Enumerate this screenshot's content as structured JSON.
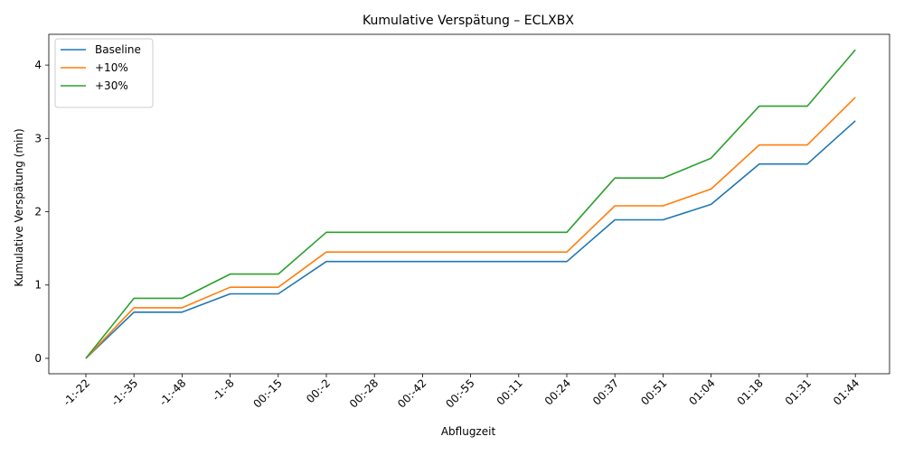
{
  "chart_data": {
    "type": "line",
    "title": "Kumulative Verspätung – ECLXBX",
    "xlabel": "Abflugzeit",
    "ylabel": "Kumulative Verspätung (min)",
    "categories": [
      "-1:-22",
      "-1:-35",
      "-1:-48",
      "-1:-8",
      "00:-15",
      "00:-2",
      "00:-28",
      "00:-42",
      "00:-55",
      "00:11",
      "00:24",
      "00:37",
      "00:51",
      "01:04",
      "01:18",
      "01:31",
      "01:44"
    ],
    "yticks": [
      0,
      1,
      2,
      3,
      4
    ],
    "ylim": [
      -0.21,
      4.42
    ],
    "grid": false,
    "legend_position": "top-left",
    "series": [
      {
        "name": "Baseline",
        "color": "#1f77b4",
        "values": [
          0,
          0.63,
          0.63,
          0.88,
          0.88,
          1.32,
          1.32,
          1.32,
          1.32,
          1.32,
          1.32,
          1.89,
          1.89,
          2.1,
          2.65,
          2.65,
          3.24
        ]
      },
      {
        "name": "+10%",
        "color": "#ff7f0e",
        "values": [
          0,
          0.69,
          0.69,
          0.97,
          0.97,
          1.45,
          1.45,
          1.45,
          1.45,
          1.45,
          1.45,
          2.08,
          2.08,
          2.31,
          2.91,
          2.91,
          3.56
        ]
      },
      {
        "name": "+30%",
        "color": "#2ca02c",
        "values": [
          0,
          0.82,
          0.82,
          1.15,
          1.15,
          1.72,
          1.72,
          1.72,
          1.72,
          1.72,
          1.72,
          2.46,
          2.46,
          2.73,
          3.44,
          3.44,
          4.21
        ]
      }
    ]
  }
}
